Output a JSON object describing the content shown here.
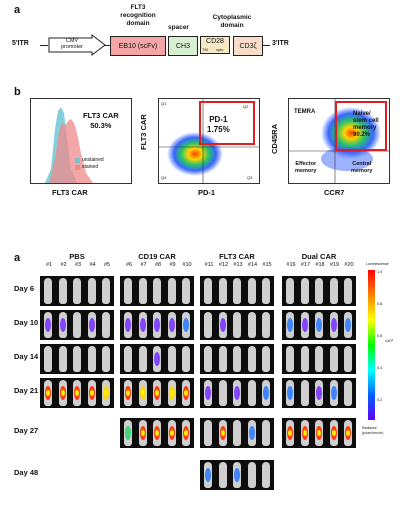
{
  "panel_a_top": {
    "letter": "a",
    "itr5": "5'ITR",
    "itr3": "3'ITR",
    "header_flt3": "FLT3\nrecognition\ndomain",
    "header_spacer": "spacer",
    "header_cyto": "Cytoplasmic\ndomain",
    "cmv_box": "CMV\npromoter",
    "eb10_box": "EB10 (scFv)",
    "ch3_box": "CH3",
    "cd28_box": "CD28",
    "cd28_sub_tm": "TM",
    "cd28_sub_cyto": "cyto",
    "cd3z_box": "CD3ζ",
    "colors": {
      "eb10": "#f4a6a6",
      "ch3": "#d9efd2",
      "cd28": "#f6e8c4",
      "cd3z": "#f9ddc8"
    }
  },
  "panel_b": {
    "letter": "b",
    "hist": {
      "title_line1": "FLT3 CAR",
      "title_line2": "50.3%",
      "legend_unstained": "unstained",
      "legend_stained": "stained",
      "xlabel": "FLT3 CAR",
      "colors": {
        "unstained": "#6fc7d6",
        "stained": "#f08a8a"
      }
    },
    "scatter1": {
      "ylabel": "FLT3 CAR",
      "xlabel": "PD-1",
      "gate_label_line1": "PD-1",
      "gate_label_line2": "1.75%",
      "q_tl": "Q1",
      "q_tr": "Q2",
      "q_bl": "Q4",
      "q_br": "Q3",
      "v_tr": "1.75"
    },
    "scatter2": {
      "ylabel": "CD45RA",
      "xlabel": "CCR7",
      "temra": "TEMRA",
      "naive_line1": "Naive/",
      "naive_line2": "stem cell",
      "naive_line3": "memory",
      "naive_line4": "90.2%",
      "effector_line1": "Effector",
      "effector_line2": "memory",
      "central_line1": "Central",
      "central_line2": "memory"
    }
  },
  "panel_a_bottom": {
    "letter": "a",
    "groups": [
      {
        "name": "PBS",
        "ids": [
          "#1",
          "#2",
          "#3",
          "#4",
          "#5"
        ]
      },
      {
        "name": "CD19 CAR",
        "ids": [
          "#6",
          "#7",
          "#8",
          "#9",
          "#10"
        ]
      },
      {
        "name": "FLT3 CAR",
        "ids": [
          "#11",
          "#12",
          "#13",
          "#14",
          "#15"
        ]
      },
      {
        "name": "Dual CAR",
        "ids": [
          "#16",
          "#17",
          "#18",
          "#19",
          "#20"
        ]
      }
    ],
    "days": [
      "Day 6",
      "Day 10",
      "Day 14",
      "Day 21",
      "Day 27",
      "Day 48"
    ],
    "colorbar": {
      "title": "Luminescence",
      "ticks": [
        "1.0",
        "0.8",
        "0.6",
        "0.4",
        "0.2"
      ],
      "exp_label": "x10⁸",
      "units_line1": "Radiance",
      "units_line2": "(p/sec/cm²/sr)"
    }
  }
}
